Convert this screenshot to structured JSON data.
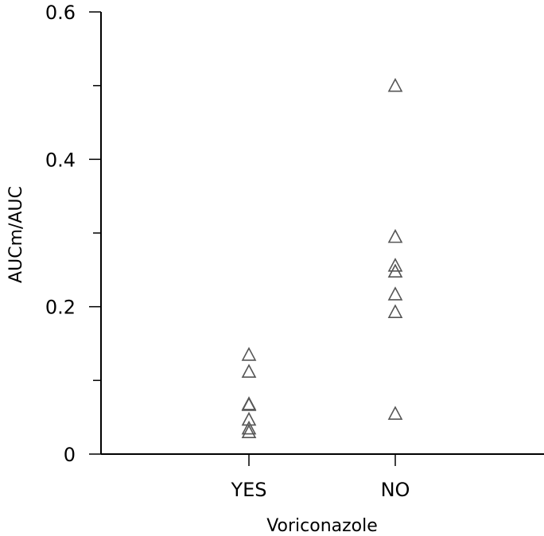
{
  "chart_data": {
    "type": "scatter",
    "xlabel": "Voriconazole",
    "ylabel": "AUCm/AUC",
    "categories": [
      "YES",
      "NO"
    ],
    "ylim": [
      0,
      0.6
    ],
    "y_tick_labels": [
      "0",
      "0.2",
      "0.4",
      "0.6"
    ],
    "y_ticks": [
      0,
      0.1,
      0.2,
      0.3,
      0.4,
      0.5,
      0.6
    ],
    "marker": "open-triangle",
    "marker_color": "#555555",
    "grid": false,
    "series": [
      {
        "category": "YES",
        "values": [
          0.135,
          0.112,
          0.068,
          0.067,
          0.047,
          0.035,
          0.03
        ]
      },
      {
        "category": "NO",
        "values": [
          0.5,
          0.295,
          0.256,
          0.248,
          0.217,
          0.193,
          0.055
        ]
      }
    ]
  }
}
